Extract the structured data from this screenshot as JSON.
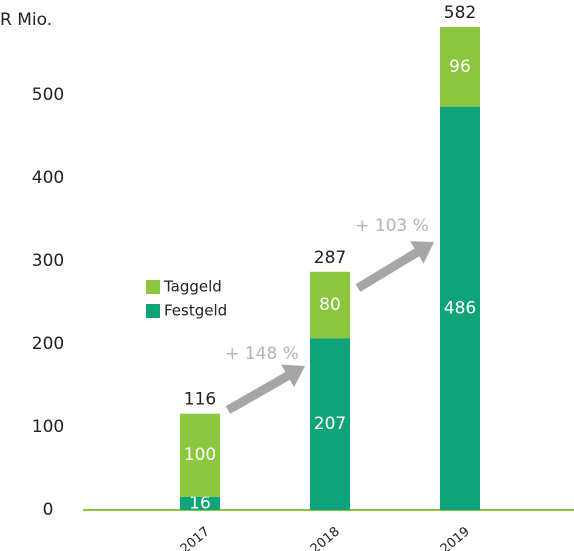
{
  "chart_data": {
    "type": "stacked_bar",
    "title": "R Mio.",
    "categories": [
      "2017",
      "2018",
      "2019"
    ],
    "series": [
      {
        "name": "Festgeld",
        "color": "#0fa37a",
        "values": [
          16,
          207,
          486
        ]
      },
      {
        "name": "Taggeld",
        "color": "#8cc63f",
        "values": [
          100,
          80,
          96
        ]
      }
    ],
    "totals": [
      116,
      287,
      582
    ],
    "annotations": [
      "+ 148 %",
      "+ 103 %"
    ],
    "ylim": [
      0,
      600
    ],
    "yticks": [
      0,
      100,
      200,
      300,
      400,
      500
    ],
    "grid": false
  }
}
